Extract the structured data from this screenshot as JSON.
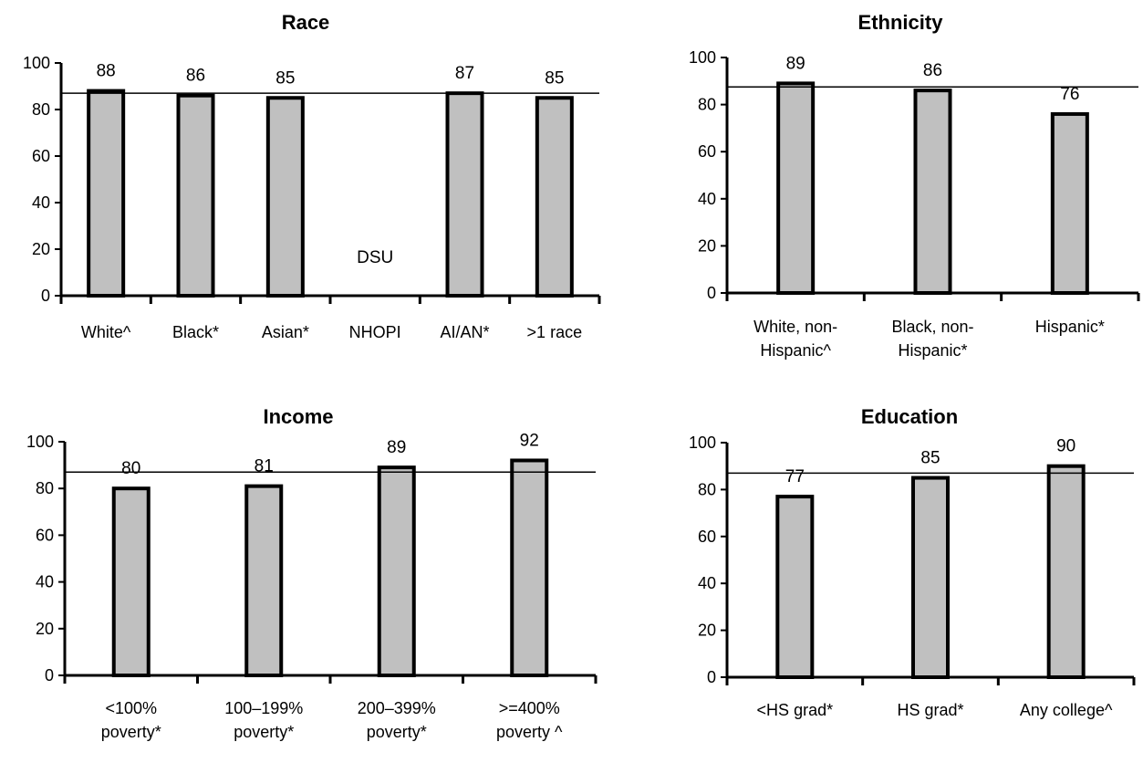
{
  "colors": {
    "bar_fill": "#c0c0c0",
    "bar_stroke": "#000000",
    "reference_line": "#000000"
  },
  "chart_data": [
    {
      "type": "bar",
      "title": "Race",
      "categories": [
        [
          "White^"
        ],
        [
          "Black*"
        ],
        [
          "Asian*"
        ],
        [
          "NHOPI"
        ],
        [
          "AI/AN*"
        ],
        [
          ">1 race"
        ]
      ],
      "values": [
        88,
        86,
        85,
        null,
        87,
        85
      ],
      "value_labels": [
        "88",
        "86",
        "85",
        "DSU",
        "87",
        "85"
      ],
      "reference_value": 87,
      "ylim": [
        0,
        100
      ],
      "yticks": [
        0,
        20,
        40,
        60,
        80,
        100
      ],
      "xlabel": "",
      "ylabel": "",
      "grid": false,
      "legend": "none"
    },
    {
      "type": "bar",
      "title": "Ethnicity",
      "categories": [
        [
          "White, non-",
          "Hispanic^"
        ],
        [
          "Black, non-",
          "Hispanic*"
        ],
        [
          "Hispanic*"
        ]
      ],
      "values": [
        89,
        86,
        76
      ],
      "value_labels": [
        "89",
        "86",
        "76"
      ],
      "reference_value": 87.5,
      "ylim": [
        0,
        100
      ],
      "yticks": [
        0,
        20,
        40,
        60,
        80,
        100
      ],
      "xlabel": "",
      "ylabel": "",
      "grid": false,
      "legend": "none"
    },
    {
      "type": "bar",
      "title": "Income",
      "categories": [
        [
          "<100%",
          "poverty*"
        ],
        [
          "100–199%",
          "poverty*"
        ],
        [
          "200–399%",
          "poverty*"
        ],
        [
          ">=400%",
          "poverty ^"
        ]
      ],
      "values": [
        80,
        81,
        89,
        92
      ],
      "value_labels": [
        "80",
        "81",
        "89",
        "92"
      ],
      "reference_value": 87,
      "ylim": [
        0,
        100
      ],
      "yticks": [
        0,
        20,
        40,
        60,
        80,
        100
      ],
      "xlabel": "",
      "ylabel": "",
      "grid": false,
      "legend": "none"
    },
    {
      "type": "bar",
      "title": "Education",
      "categories": [
        [
          "<HS grad*"
        ],
        [
          "HS grad*"
        ],
        [
          "Any college^"
        ]
      ],
      "values": [
        77,
        85,
        90
      ],
      "value_labels": [
        "77",
        "85",
        "90"
      ],
      "reference_value": 87,
      "ylim": [
        0,
        100
      ],
      "yticks": [
        0,
        20,
        40,
        60,
        80,
        100
      ],
      "xlabel": "",
      "ylabel": "",
      "grid": false,
      "legend": "none"
    }
  ]
}
